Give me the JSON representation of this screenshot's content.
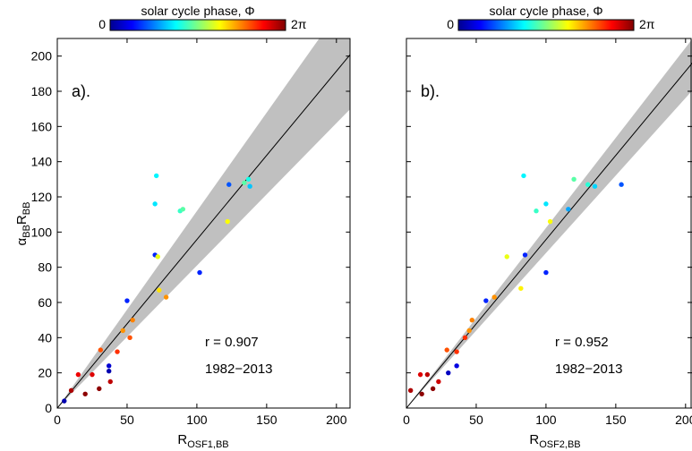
{
  "colorbar": {
    "title": "solar cycle phase, Φ",
    "min_label": "0",
    "max_label": "2π",
    "colormap": "jet"
  },
  "chart_data": [
    {
      "type": "scatter",
      "panel_label": "a).",
      "xlabel": {
        "main": "R",
        "sub": "OSF1,BB"
      },
      "ylabel": {
        "alpha": "α",
        "alpha_sub": "BB",
        "main": "R",
        "main_sub": "BB"
      },
      "xlim": [
        0,
        210
      ],
      "ylim": [
        0,
        210
      ],
      "xticks": [
        0,
        50,
        100,
        150,
        200
      ],
      "yticks": [
        0,
        20,
        40,
        60,
        80,
        100,
        120,
        140,
        160,
        180,
        200
      ],
      "xticklabels": [
        "0",
        "50",
        "100",
        "150",
        "200"
      ],
      "yticklabels": [
        "0",
        "20",
        "40",
        "60",
        "80",
        "100",
        "120",
        "140",
        "160",
        "180",
        "200"
      ],
      "fit_line": {
        "x": [
          0,
          210
        ],
        "y": [
          0,
          201
        ]
      },
      "uncertainty_band": {
        "x": [
          0,
          210
        ],
        "lower": [
          0,
          170
        ],
        "upper": [
          0,
          235
        ]
      },
      "band_color": "#c0c0c0",
      "annotation_r": "r = 0.907",
      "annotation_years": "1982−2013",
      "points": [
        {
          "x": 5,
          "y": 4,
          "phase": 0.3
        },
        {
          "x": 10,
          "y": 10,
          "phase": 6.0
        },
        {
          "x": 15,
          "y": 19,
          "phase": 5.6
        },
        {
          "x": 20,
          "y": 8,
          "phase": 6.2
        },
        {
          "x": 25,
          "y": 19,
          "phase": 5.7
        },
        {
          "x": 30,
          "y": 11,
          "phase": 6.2
        },
        {
          "x": 31,
          "y": 33,
          "phase": 5.0
        },
        {
          "x": 37,
          "y": 21,
          "phase": 0.3
        },
        {
          "x": 37,
          "y": 24,
          "phase": 0.5
        },
        {
          "x": 38,
          "y": 15,
          "phase": 5.9
        },
        {
          "x": 43,
          "y": 32,
          "phase": 5.2
        },
        {
          "x": 47,
          "y": 44,
          "phase": 4.6
        },
        {
          "x": 50,
          "y": 61,
          "phase": 1.0
        },
        {
          "x": 52,
          "y": 40,
          "phase": 5.0
        },
        {
          "x": 54,
          "y": 50,
          "phase": 4.7
        },
        {
          "x": 70,
          "y": 87,
          "phase": 1.0
        },
        {
          "x": 70,
          "y": 116,
          "phase": 2.2
        },
        {
          "x": 71,
          "y": 132,
          "phase": 2.3
        },
        {
          "x": 72,
          "y": 86,
          "phase": 3.8
        },
        {
          "x": 73,
          "y": 67,
          "phase": 4.1
        },
        {
          "x": 78,
          "y": 63,
          "phase": 4.6
        },
        {
          "x": 88,
          "y": 112,
          "phase": 2.7
        },
        {
          "x": 90,
          "y": 113,
          "phase": 2.9
        },
        {
          "x": 102,
          "y": 77,
          "phase": 1.0
        },
        {
          "x": 122,
          "y": 106,
          "phase": 3.9
        },
        {
          "x": 123,
          "y": 127,
          "phase": 1.3
        },
        {
          "x": 134,
          "y": 128,
          "phase": 2.9
        },
        {
          "x": 137,
          "y": 130,
          "phase": 2.5
        },
        {
          "x": 138,
          "y": 126,
          "phase": 2.0
        }
      ]
    },
    {
      "type": "scatter",
      "panel_label": "b).",
      "xlabel": {
        "main": "R",
        "sub": "OSF2,BB"
      },
      "ylabel": null,
      "xlim": [
        0,
        210
      ],
      "ylim": [
        0,
        210
      ],
      "xticks": [
        0,
        50,
        100,
        150,
        200
      ],
      "yticks": [
        0,
        20,
        40,
        60,
        80,
        100,
        120,
        140,
        160,
        180,
        200
      ],
      "xticklabels": [
        "0",
        "50",
        "100",
        "150",
        "200"
      ],
      "yticklabels": [],
      "fit_line": {
        "x": [
          0,
          210
        ],
        "y": [
          0,
          201
        ]
      },
      "uncertainty_band": {
        "x": [
          0,
          210
        ],
        "lower": [
          0,
          185
        ],
        "upper": [
          0,
          215
        ]
      },
      "band_color": "#c0c0c0",
      "annotation_r": "r = 0.952",
      "annotation_years": "1982−2013",
      "points": [
        {
          "x": 3,
          "y": 10,
          "phase": 6.0
        },
        {
          "x": 10,
          "y": 19,
          "phase": 5.7
        },
        {
          "x": 11,
          "y": 8,
          "phase": 6.2
        },
        {
          "x": 15,
          "y": 19,
          "phase": 5.9
        },
        {
          "x": 19,
          "y": 11,
          "phase": 6.2
        },
        {
          "x": 23,
          "y": 15,
          "phase": 5.8
        },
        {
          "x": 29,
          "y": 33,
          "phase": 5.0
        },
        {
          "x": 30,
          "y": 20,
          "phase": 0.4
        },
        {
          "x": 36,
          "y": 24,
          "phase": 0.6
        },
        {
          "x": 36,
          "y": 32,
          "phase": 5.2
        },
        {
          "x": 42,
          "y": 40,
          "phase": 5.2
        },
        {
          "x": 45,
          "y": 44,
          "phase": 4.6
        },
        {
          "x": 47,
          "y": 50,
          "phase": 4.7
        },
        {
          "x": 57,
          "y": 61,
          "phase": 1.0
        },
        {
          "x": 63,
          "y": 63,
          "phase": 4.6
        },
        {
          "x": 72,
          "y": 86,
          "phase": 3.8
        },
        {
          "x": 82,
          "y": 68,
          "phase": 4.0
        },
        {
          "x": 84,
          "y": 132,
          "phase": 2.3
        },
        {
          "x": 85,
          "y": 87,
          "phase": 1.0
        },
        {
          "x": 93,
          "y": 112,
          "phase": 2.7
        },
        {
          "x": 100,
          "y": 116,
          "phase": 2.2
        },
        {
          "x": 100,
          "y": 77,
          "phase": 1.0
        },
        {
          "x": 103,
          "y": 106,
          "phase": 3.9
        },
        {
          "x": 116,
          "y": 113,
          "phase": 1.8
        },
        {
          "x": 120,
          "y": 130,
          "phase": 2.9
        },
        {
          "x": 130,
          "y": 127,
          "phase": 2.6
        },
        {
          "x": 135,
          "y": 126,
          "phase": 2.1
        },
        {
          "x": 154,
          "y": 127,
          "phase": 1.3
        }
      ]
    }
  ]
}
